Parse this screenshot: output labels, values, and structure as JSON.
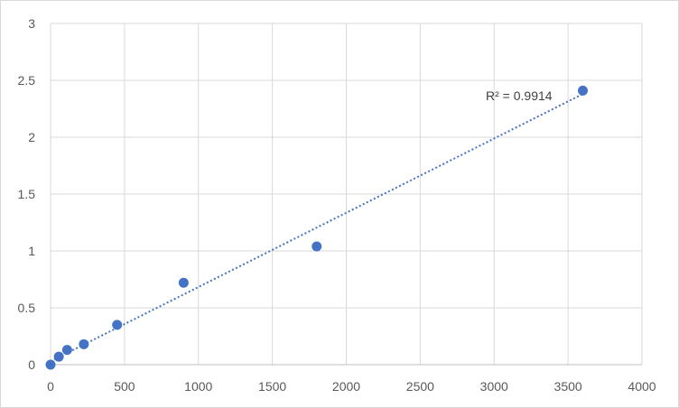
{
  "chart_data": {
    "type": "scatter",
    "title": "",
    "xlabel": "",
    "ylabel": "",
    "xlim": [
      0,
      4000
    ],
    "ylim": [
      0,
      3
    ],
    "x_ticks": [
      0,
      500,
      1000,
      1500,
      2000,
      2500,
      3000,
      3500,
      4000
    ],
    "y_ticks": [
      0,
      0.5,
      1,
      1.5,
      2,
      2.5,
      3
    ],
    "x_tick_labels": [
      "0",
      "500",
      "1000",
      "1500",
      "2000",
      "2500",
      "3000",
      "3500",
      "4000"
    ],
    "y_tick_labels": [
      "0",
      "0.5",
      "1",
      "1.5",
      "2",
      "2.5",
      "3"
    ],
    "grid": true,
    "legend": "none",
    "series": [
      {
        "x": [
          0,
          56,
          112,
          225,
          450,
          900,
          1800,
          3600
        ],
        "y": [
          0,
          0.07,
          0.13,
          0.18,
          0.35,
          0.72,
          1.04,
          2.41
        ],
        "color": "#4472c4",
        "marker": "circle"
      }
    ],
    "trendline": {
      "type": "linear",
      "style": "dotted",
      "color": "#4472c4",
      "x_range": [
        0,
        3600
      ],
      "y_range": [
        0.03,
        2.38
      ],
      "r_squared_label": "R² = 0.9914"
    }
  }
}
